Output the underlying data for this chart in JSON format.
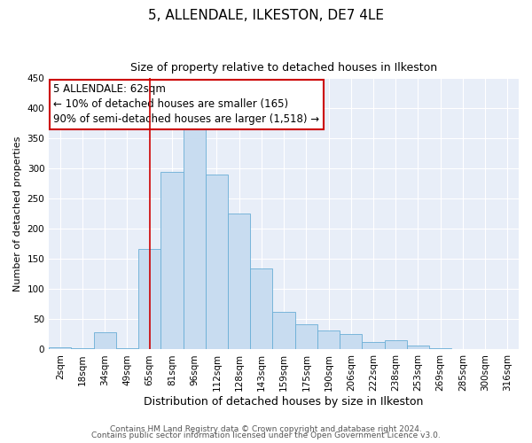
{
  "title": "5, ALLENDALE, ILKESTON, DE7 4LE",
  "subtitle": "Size of property relative to detached houses in Ilkeston",
  "xlabel": "Distribution of detached houses by size in Ilkeston",
  "ylabel": "Number of detached properties",
  "bar_color": "#c8dcf0",
  "bar_edge_color": "#6aaed6",
  "bg_color": "#e8eef8",
  "grid_color": "#ffffff",
  "categories": [
    "2sqm",
    "18sqm",
    "34sqm",
    "49sqm",
    "65sqm",
    "81sqm",
    "96sqm",
    "112sqm",
    "128sqm",
    "143sqm",
    "159sqm",
    "175sqm",
    "190sqm",
    "206sqm",
    "222sqm",
    "238sqm",
    "253sqm",
    "269sqm",
    "285sqm",
    "300sqm",
    "316sqm"
  ],
  "values": [
    3,
    2,
    29,
    2,
    167,
    295,
    370,
    290,
    225,
    135,
    62,
    42,
    31,
    25,
    13,
    16,
    6,
    2,
    1,
    1,
    1
  ],
  "vline_x": 4.5,
  "vline_color": "#cc0000",
  "annotation_box": {
    "text_line1": "5 ALLENDALE: 62sqm",
    "text_line2": "← 10% of detached houses are smaller (165)",
    "text_line3": "90% of semi-detached houses are larger (1,518) →",
    "box_color": "#ffffff",
    "border_color": "#cc0000",
    "fontsize": 8.5
  },
  "ylim": [
    0,
    450
  ],
  "yticks": [
    0,
    50,
    100,
    150,
    200,
    250,
    300,
    350,
    400,
    450
  ],
  "footer_line1": "Contains HM Land Registry data © Crown copyright and database right 2024.",
  "footer_line2": "Contains public sector information licensed under the Open Government Licence v3.0.",
  "title_fontsize": 11,
  "subtitle_fontsize": 9,
  "xlabel_fontsize": 9,
  "ylabel_fontsize": 8,
  "tick_fontsize": 7.5,
  "footer_fontsize": 6.5
}
